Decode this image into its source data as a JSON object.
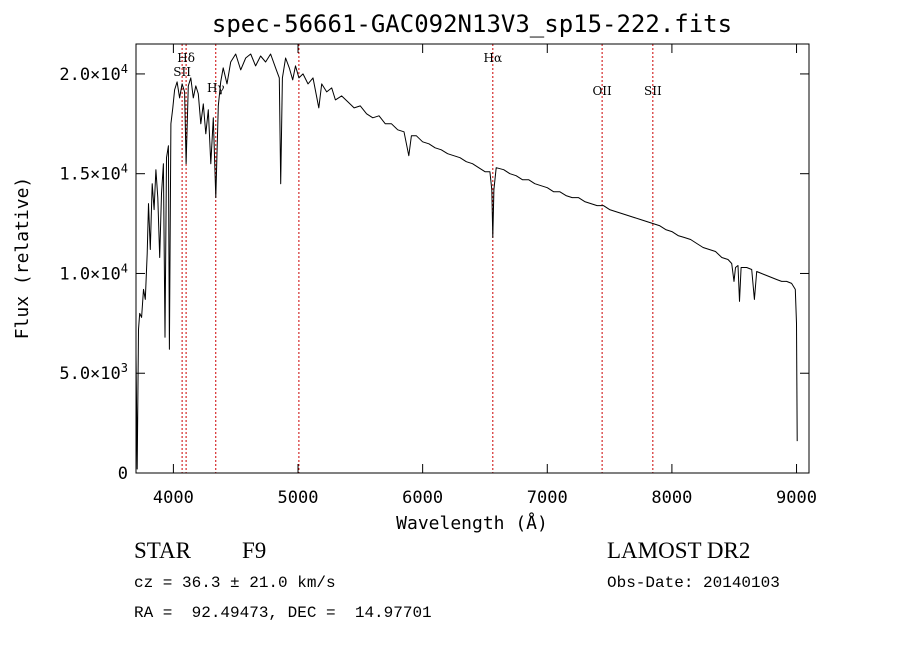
{
  "chart_data": {
    "type": "line",
    "title": "spec-56661-GAC092N13V3_sp15-222.fits",
    "xlabel": "Wavelength (Å)",
    "ylabel": "Flux (relative)",
    "xlim": [
      3700,
      9100
    ],
    "ylim": [
      0,
      21500
    ],
    "x_ticks": [
      {
        "value": 4000,
        "label": "4000"
      },
      {
        "value": 5000,
        "label": "5000"
      },
      {
        "value": 6000,
        "label": "6000"
      },
      {
        "value": 7000,
        "label": "7000"
      },
      {
        "value": 8000,
        "label": "8000"
      },
      {
        "value": 9000,
        "label": "9000"
      }
    ],
    "y_ticks": [
      {
        "value": 0,
        "label": "0",
        "mantissa": "0",
        "exponent": ""
      },
      {
        "value": 5000,
        "label": "5.0×10³",
        "mantissa": "5.0×10",
        "exponent": "3"
      },
      {
        "value": 10000,
        "label": "1.0×10⁴",
        "mantissa": "1.0×10",
        "exponent": "4"
      },
      {
        "value": 15000,
        "label": "1.5×10⁴",
        "mantissa": "1.5×10",
        "exponent": "4"
      },
      {
        "value": 20000,
        "label": "2.0×10⁴",
        "mantissa": "2.0×10",
        "exponent": "4"
      }
    ],
    "line_markers": [
      {
        "wavelength": 4102,
        "label": "Hδ"
      },
      {
        "wavelength": 4070,
        "label": "SII"
      },
      {
        "wavelength": 4340,
        "label": "Hγ"
      },
      {
        "wavelength": 5007,
        "label": ""
      },
      {
        "wavelength": 6563,
        "label": "Hα"
      },
      {
        "wavelength": 7440,
        "label": "OII"
      },
      {
        "wavelength": 7847,
        "label": "SII"
      }
    ],
    "series": [
      {
        "points": [
          [
            3700,
            6000
          ],
          [
            3710,
            200
          ],
          [
            3720,
            7200
          ],
          [
            3730,
            8000
          ],
          [
            3745,
            7800
          ],
          [
            3760,
            9200
          ],
          [
            3775,
            8700
          ],
          [
            3790,
            11000
          ],
          [
            3800,
            13500
          ],
          [
            3815,
            11200
          ],
          [
            3830,
            14500
          ],
          [
            3845,
            13200
          ],
          [
            3860,
            15200
          ],
          [
            3875,
            13800
          ],
          [
            3890,
            10800
          ],
          [
            3905,
            14000
          ],
          [
            3920,
            15500
          ],
          [
            3933,
            6800
          ],
          [
            3945,
            15800
          ],
          [
            3960,
            16400
          ],
          [
            3968,
            6200
          ],
          [
            3980,
            17500
          ],
          [
            3995,
            18300
          ],
          [
            4010,
            19200
          ],
          [
            4030,
            19600
          ],
          [
            4050,
            18800
          ],
          [
            4070,
            19500
          ],
          [
            4090,
            19100
          ],
          [
            4102,
            15500
          ],
          [
            4120,
            19400
          ],
          [
            4140,
            19800
          ],
          [
            4160,
            18800
          ],
          [
            4180,
            19400
          ],
          [
            4200,
            19000
          ],
          [
            4220,
            17500
          ],
          [
            4240,
            18500
          ],
          [
            4260,
            17000
          ],
          [
            4280,
            18200
          ],
          [
            4300,
            15500
          ],
          [
            4320,
            17800
          ],
          [
            4340,
            13800
          ],
          [
            4360,
            18400
          ],
          [
            4380,
            19600
          ],
          [
            4400,
            20300
          ],
          [
            4430,
            19500
          ],
          [
            4460,
            20600
          ],
          [
            4500,
            21000
          ],
          [
            4540,
            20200
          ],
          [
            4580,
            20800
          ],
          [
            4620,
            21000
          ],
          [
            4660,
            20400
          ],
          [
            4700,
            20900
          ],
          [
            4740,
            20600
          ],
          [
            4780,
            21000
          ],
          [
            4820,
            20300
          ],
          [
            4850,
            19800
          ],
          [
            4861,
            14500
          ],
          [
            4875,
            19800
          ],
          [
            4900,
            20800
          ],
          [
            4930,
            20300
          ],
          [
            4957,
            19700
          ],
          [
            4980,
            20400
          ],
          [
            5007,
            19800
          ],
          [
            5040,
            20000
          ],
          [
            5080,
            19500
          ],
          [
            5120,
            19800
          ],
          [
            5167,
            18300
          ],
          [
            5190,
            19500
          ],
          [
            5230,
            19100
          ],
          [
            5270,
            19300
          ],
          [
            5300,
            18700
          ],
          [
            5350,
            18900
          ],
          [
            5400,
            18600
          ],
          [
            5450,
            18300
          ],
          [
            5500,
            18400
          ],
          [
            5550,
            18000
          ],
          [
            5600,
            17800
          ],
          [
            5650,
            17900
          ],
          [
            5700,
            17500
          ],
          [
            5750,
            17500
          ],
          [
            5800,
            17200
          ],
          [
            5850,
            17100
          ],
          [
            5889,
            15900
          ],
          [
            5910,
            16900
          ],
          [
            5950,
            16900
          ],
          [
            6000,
            16600
          ],
          [
            6050,
            16500
          ],
          [
            6100,
            16300
          ],
          [
            6150,
            16200
          ],
          [
            6200,
            16000
          ],
          [
            6250,
            15900
          ],
          [
            6300,
            15800
          ],
          [
            6350,
            15600
          ],
          [
            6400,
            15500
          ],
          [
            6450,
            15300
          ],
          [
            6500,
            15100
          ],
          [
            6540,
            15100
          ],
          [
            6555,
            14200
          ],
          [
            6563,
            11800
          ],
          [
            6572,
            14200
          ],
          [
            6590,
            15300
          ],
          [
            6650,
            15200
          ],
          [
            6700,
            15000
          ],
          [
            6750,
            14900
          ],
          [
            6800,
            14700
          ],
          [
            6850,
            14700
          ],
          [
            6900,
            14500
          ],
          [
            6950,
            14400
          ],
          [
            7000,
            14300
          ],
          [
            7050,
            14100
          ],
          [
            7100,
            14100
          ],
          [
            7150,
            13900
          ],
          [
            7200,
            13800
          ],
          [
            7250,
            13800
          ],
          [
            7300,
            13600
          ],
          [
            7350,
            13500
          ],
          [
            7400,
            13400
          ],
          [
            7450,
            13400
          ],
          [
            7500,
            13200
          ],
          [
            7550,
            13100
          ],
          [
            7600,
            13000
          ],
          [
            7650,
            12900
          ],
          [
            7700,
            12800
          ],
          [
            7750,
            12700
          ],
          [
            7800,
            12600
          ],
          [
            7850,
            12500
          ],
          [
            7900,
            12400
          ],
          [
            7950,
            12200
          ],
          [
            8000,
            12100
          ],
          [
            8050,
            11900
          ],
          [
            8100,
            11800
          ],
          [
            8150,
            11700
          ],
          [
            8200,
            11500
          ],
          [
            8250,
            11300
          ],
          [
            8300,
            11200
          ],
          [
            8350,
            11100
          ],
          [
            8400,
            10800
          ],
          [
            8450,
            10700
          ],
          [
            8480,
            10500
          ],
          [
            8498,
            9600
          ],
          [
            8510,
            10300
          ],
          [
            8530,
            10400
          ],
          [
            8542,
            8600
          ],
          [
            8555,
            10300
          ],
          [
            8600,
            10300
          ],
          [
            8640,
            10200
          ],
          [
            8662,
            8700
          ],
          [
            8680,
            10100
          ],
          [
            8720,
            10000
          ],
          [
            8760,
            9900
          ],
          [
            8800,
            9800
          ],
          [
            8840,
            9700
          ],
          [
            8880,
            9600
          ],
          [
            8920,
            9600
          ],
          [
            8960,
            9500
          ],
          [
            8990,
            9200
          ],
          [
            9000,
            7500
          ],
          [
            9005,
            1600
          ]
        ]
      }
    ]
  },
  "info": {
    "object_class": "STAR",
    "subclass": "F9",
    "survey": "LAMOST DR2",
    "redshift": "cz = 36.3 ± 21.0 km/s",
    "obs_date": "Obs-Date: 20140103",
    "coords": "RA =  92.49473, DEC =  14.97701"
  }
}
